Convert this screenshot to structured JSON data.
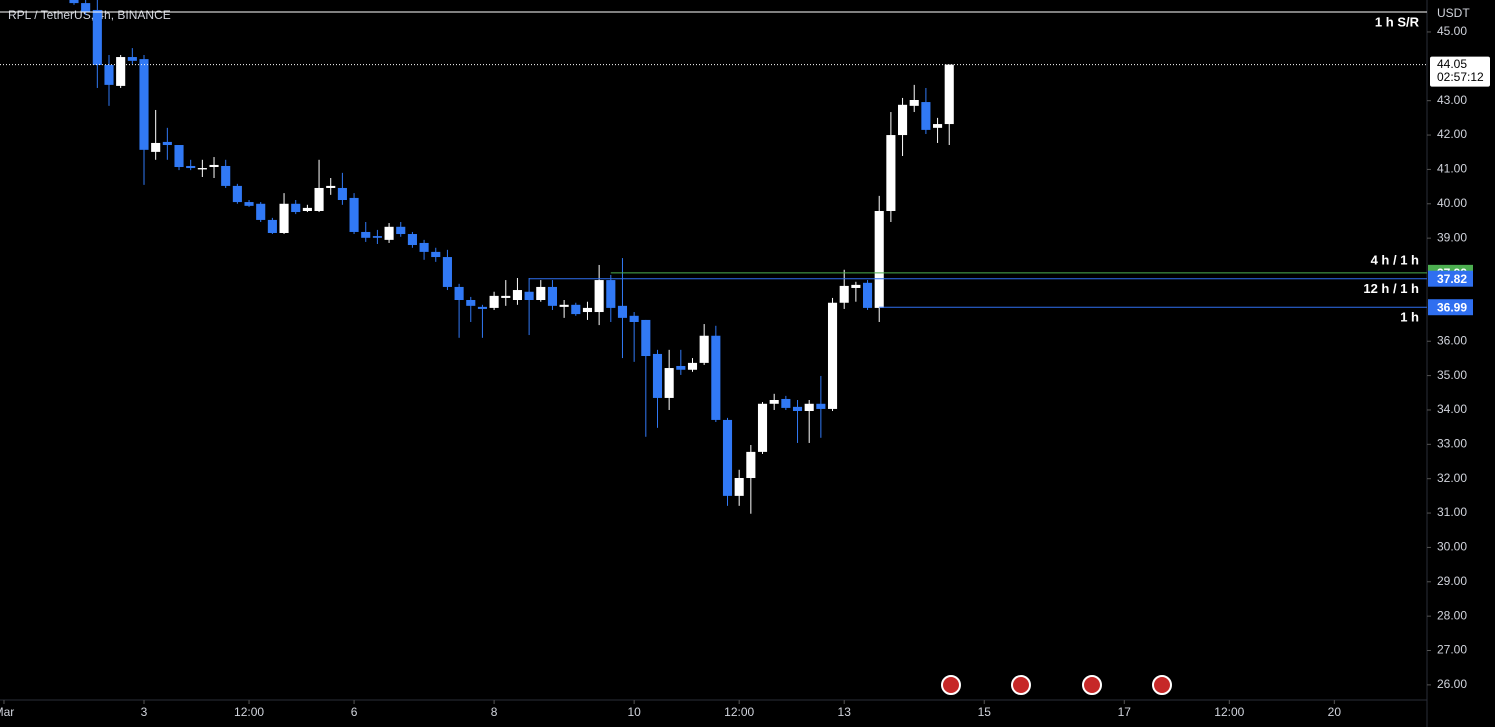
{
  "chart_data": {
    "type": "candlestick",
    "title": "RPL / TetherUS, 4h, BINANCE",
    "y_axis_label": "USDT",
    "up_color": "#ffffff",
    "down_color": "#3179f5",
    "categories": [
      null,
      null,
      null,
      null,
      null,
      null,
      null,
      null,
      null,
      null,
      null,
      null,
      null,
      null,
      null,
      null,
      null,
      null,
      null,
      null,
      null,
      null,
      null,
      null,
      null,
      null,
      null,
      null,
      null,
      null,
      null,
      null,
      null,
      null,
      null,
      null,
      null,
      null,
      null,
      null,
      null,
      null,
      null,
      null,
      null,
      null,
      null,
      null,
      null,
      null,
      null,
      null,
      null,
      null,
      null,
      null,
      null,
      null,
      null,
      null,
      null,
      null,
      null,
      null,
      null,
      null,
      null,
      null,
      null,
      null,
      null,
      null,
      null,
      null,
      null,
      null
    ],
    "series": [
      {
        "name": "open",
        "values": [
          45.93,
          45.84,
          45.64,
          44.04,
          43.43,
          44.27,
          44.21,
          41.51,
          41.8,
          41.71,
          41.1,
          41.0,
          41.07,
          41.1,
          40.52,
          40.05,
          40.0,
          39.53,
          39.15,
          40.0,
          39.79,
          39.79,
          40.46,
          40.46,
          40.17,
          39.18,
          39.06,
          38.95,
          39.33,
          39.12,
          38.86,
          38.6,
          38.45,
          37.58,
          37.2,
          37.0,
          36.97,
          37.26,
          37.2,
          37.44,
          37.2,
          37.58,
          37.0,
          37.06,
          36.85,
          36.85,
          37.78,
          37.03,
          36.74,
          36.62,
          35.63,
          34.35,
          35.28,
          35.17,
          35.37,
          36.16,
          33.71,
          31.5,
          32.02,
          32.78,
          34.18,
          34.32,
          34.09,
          33.97,
          34.18,
          34.03,
          37.12,
          37.55,
          37.7,
          36.97,
          39.79,
          42.0,
          42.85,
          42.96,
          42.21,
          42.32
        ]
      },
      {
        "name": "high",
        "values": [
          45.93,
          45.93,
          45.93,
          44.33,
          44.33,
          44.53,
          44.33,
          42.73,
          42.21,
          41.71,
          41.28,
          41.28,
          41.36,
          41.28,
          40.58,
          40.11,
          40.05,
          39.59,
          40.31,
          40.11,
          39.97,
          41.28,
          40.75,
          40.9,
          40.31,
          39.47,
          39.24,
          39.44,
          39.47,
          39.18,
          38.95,
          38.72,
          38.66,
          37.67,
          37.29,
          37.06,
          37.44,
          37.78,
          37.84,
          37.84,
          37.78,
          37.78,
          37.2,
          37.12,
          37.15,
          38.22,
          37.93,
          38.42,
          36.85,
          36.62,
          35.75,
          35.75,
          35.75,
          35.51,
          36.5,
          36.45,
          33.77,
          32.26,
          32.98,
          34.23,
          34.47,
          34.41,
          34.29,
          34.29,
          34.99,
          37.26,
          38.08,
          37.73,
          37.78,
          40.23,
          42.67,
          43.08,
          43.46,
          43.37,
          42.5,
          44.05
        ]
      },
      {
        "name": "low",
        "values": [
          45.79,
          45.49,
          43.37,
          42.85,
          43.37,
          44.07,
          40.55,
          41.28,
          41.28,
          40.98,
          40.98,
          40.78,
          40.75,
          40.46,
          40.0,
          39.91,
          39.47,
          39.12,
          39.12,
          39.7,
          39.76,
          39.76,
          40.26,
          39.97,
          39.12,
          38.89,
          38.83,
          38.86,
          39.04,
          38.72,
          38.37,
          38.31,
          37.49,
          36.1,
          36.56,
          36.1,
          36.91,
          37.03,
          37.06,
          36.18,
          37.15,
          36.91,
          36.68,
          36.74,
          36.62,
          36.47,
          36.56,
          35.51,
          35.4,
          33.22,
          33.48,
          34.0,
          35.02,
          35.11,
          35.31,
          33.65,
          31.21,
          31.21,
          30.98,
          32.72,
          34.0,
          34.0,
          33.04,
          33.04,
          33.19,
          33.97,
          36.94,
          37.15,
          36.91,
          36.56,
          39.47,
          41.39,
          42.67,
          42.03,
          41.77,
          41.71
        ]
      },
      {
        "name": "close",
        "values": [
          45.84,
          45.58,
          44.04,
          43.46,
          44.27,
          44.16,
          41.57,
          41.77,
          41.71,
          41.07,
          41.04,
          41.04,
          41.13,
          40.52,
          40.05,
          39.94,
          39.53,
          39.15,
          40.0,
          39.76,
          39.88,
          40.46,
          40.52,
          40.11,
          39.18,
          39.01,
          39.01,
          39.33,
          39.12,
          38.8,
          38.6,
          38.45,
          37.58,
          37.2,
          37.03,
          36.94,
          37.32,
          37.32,
          37.49,
          37.2,
          37.58,
          37.03,
          37.06,
          36.79,
          36.97,
          37.78,
          36.97,
          36.68,
          36.56,
          35.57,
          34.35,
          35.22,
          35.17,
          35.37,
          36.16,
          33.71,
          31.5,
          32.02,
          32.78,
          34.18,
          34.29,
          34.06,
          33.97,
          34.18,
          34.03,
          37.12,
          37.61,
          37.64,
          36.97,
          39.79,
          42.0,
          42.88,
          43.02,
          42.15,
          42.32,
          44.05
        ]
      }
    ],
    "xlim": [
      -6.34,
      115.94
    ],
    "xticks": [
      {
        "value": -6,
        "label": "Mar"
      },
      {
        "value": 6,
        "label": "3"
      },
      {
        "value": 15,
        "label": "12:00"
      },
      {
        "value": 24,
        "label": "6"
      },
      {
        "value": 36,
        "label": "8"
      },
      {
        "value": 48,
        "label": "10"
      },
      {
        "value": 57,
        "label": "12:00"
      },
      {
        "value": 66,
        "label": "13"
      },
      {
        "value": 78,
        "label": "15"
      },
      {
        "value": 90,
        "label": "17"
      },
      {
        "value": 99,
        "label": "12:00"
      },
      {
        "value": 108,
        "label": "20"
      }
    ],
    "ylim": [
      25.56,
      45.93
    ],
    "yticks": [
      {
        "value": 26,
        "label": "26.00"
      },
      {
        "value": 27,
        "label": "27.00"
      },
      {
        "value": 28,
        "label": "28.00"
      },
      {
        "value": 29,
        "label": "29.00"
      },
      {
        "value": 30,
        "label": "30.00"
      },
      {
        "value": 31,
        "label": "31.00"
      },
      {
        "value": 32,
        "label": "32.00"
      },
      {
        "value": 33,
        "label": "33.00"
      },
      {
        "value": 34,
        "label": "34.00"
      },
      {
        "value": 35,
        "label": "35.00"
      },
      {
        "value": 36,
        "label": "36.00"
      },
      {
        "value": 39,
        "label": "39.00"
      },
      {
        "value": 40,
        "label": "40.00"
      },
      {
        "value": 41,
        "label": "41.00"
      },
      {
        "value": 42,
        "label": "42.00"
      },
      {
        "value": 43,
        "label": "43.00"
      },
      {
        "value": 45,
        "label": "45.00"
      }
    ],
    "last_price": 44.05,
    "countdown": "02:57:12",
    "levels": [
      {
        "value": 45.58,
        "label": "1 h S/R",
        "color": "#ffffff",
        "label_side": "below"
      },
      {
        "value": 37.99,
        "label": "4 h / 1 h",
        "color": "#4caf50",
        "from": 46,
        "label_side": "above",
        "tag": true
      },
      {
        "value": 37.82,
        "label": "12 h / 1 h",
        "color": "#2f6ff0",
        "from": 39,
        "label_side": "below",
        "tag": true
      },
      {
        "value": 36.99,
        "label": "1 h",
        "color": "#2f6ff0",
        "from": 69,
        "label_side": "below",
        "tag": true
      }
    ]
  }
}
